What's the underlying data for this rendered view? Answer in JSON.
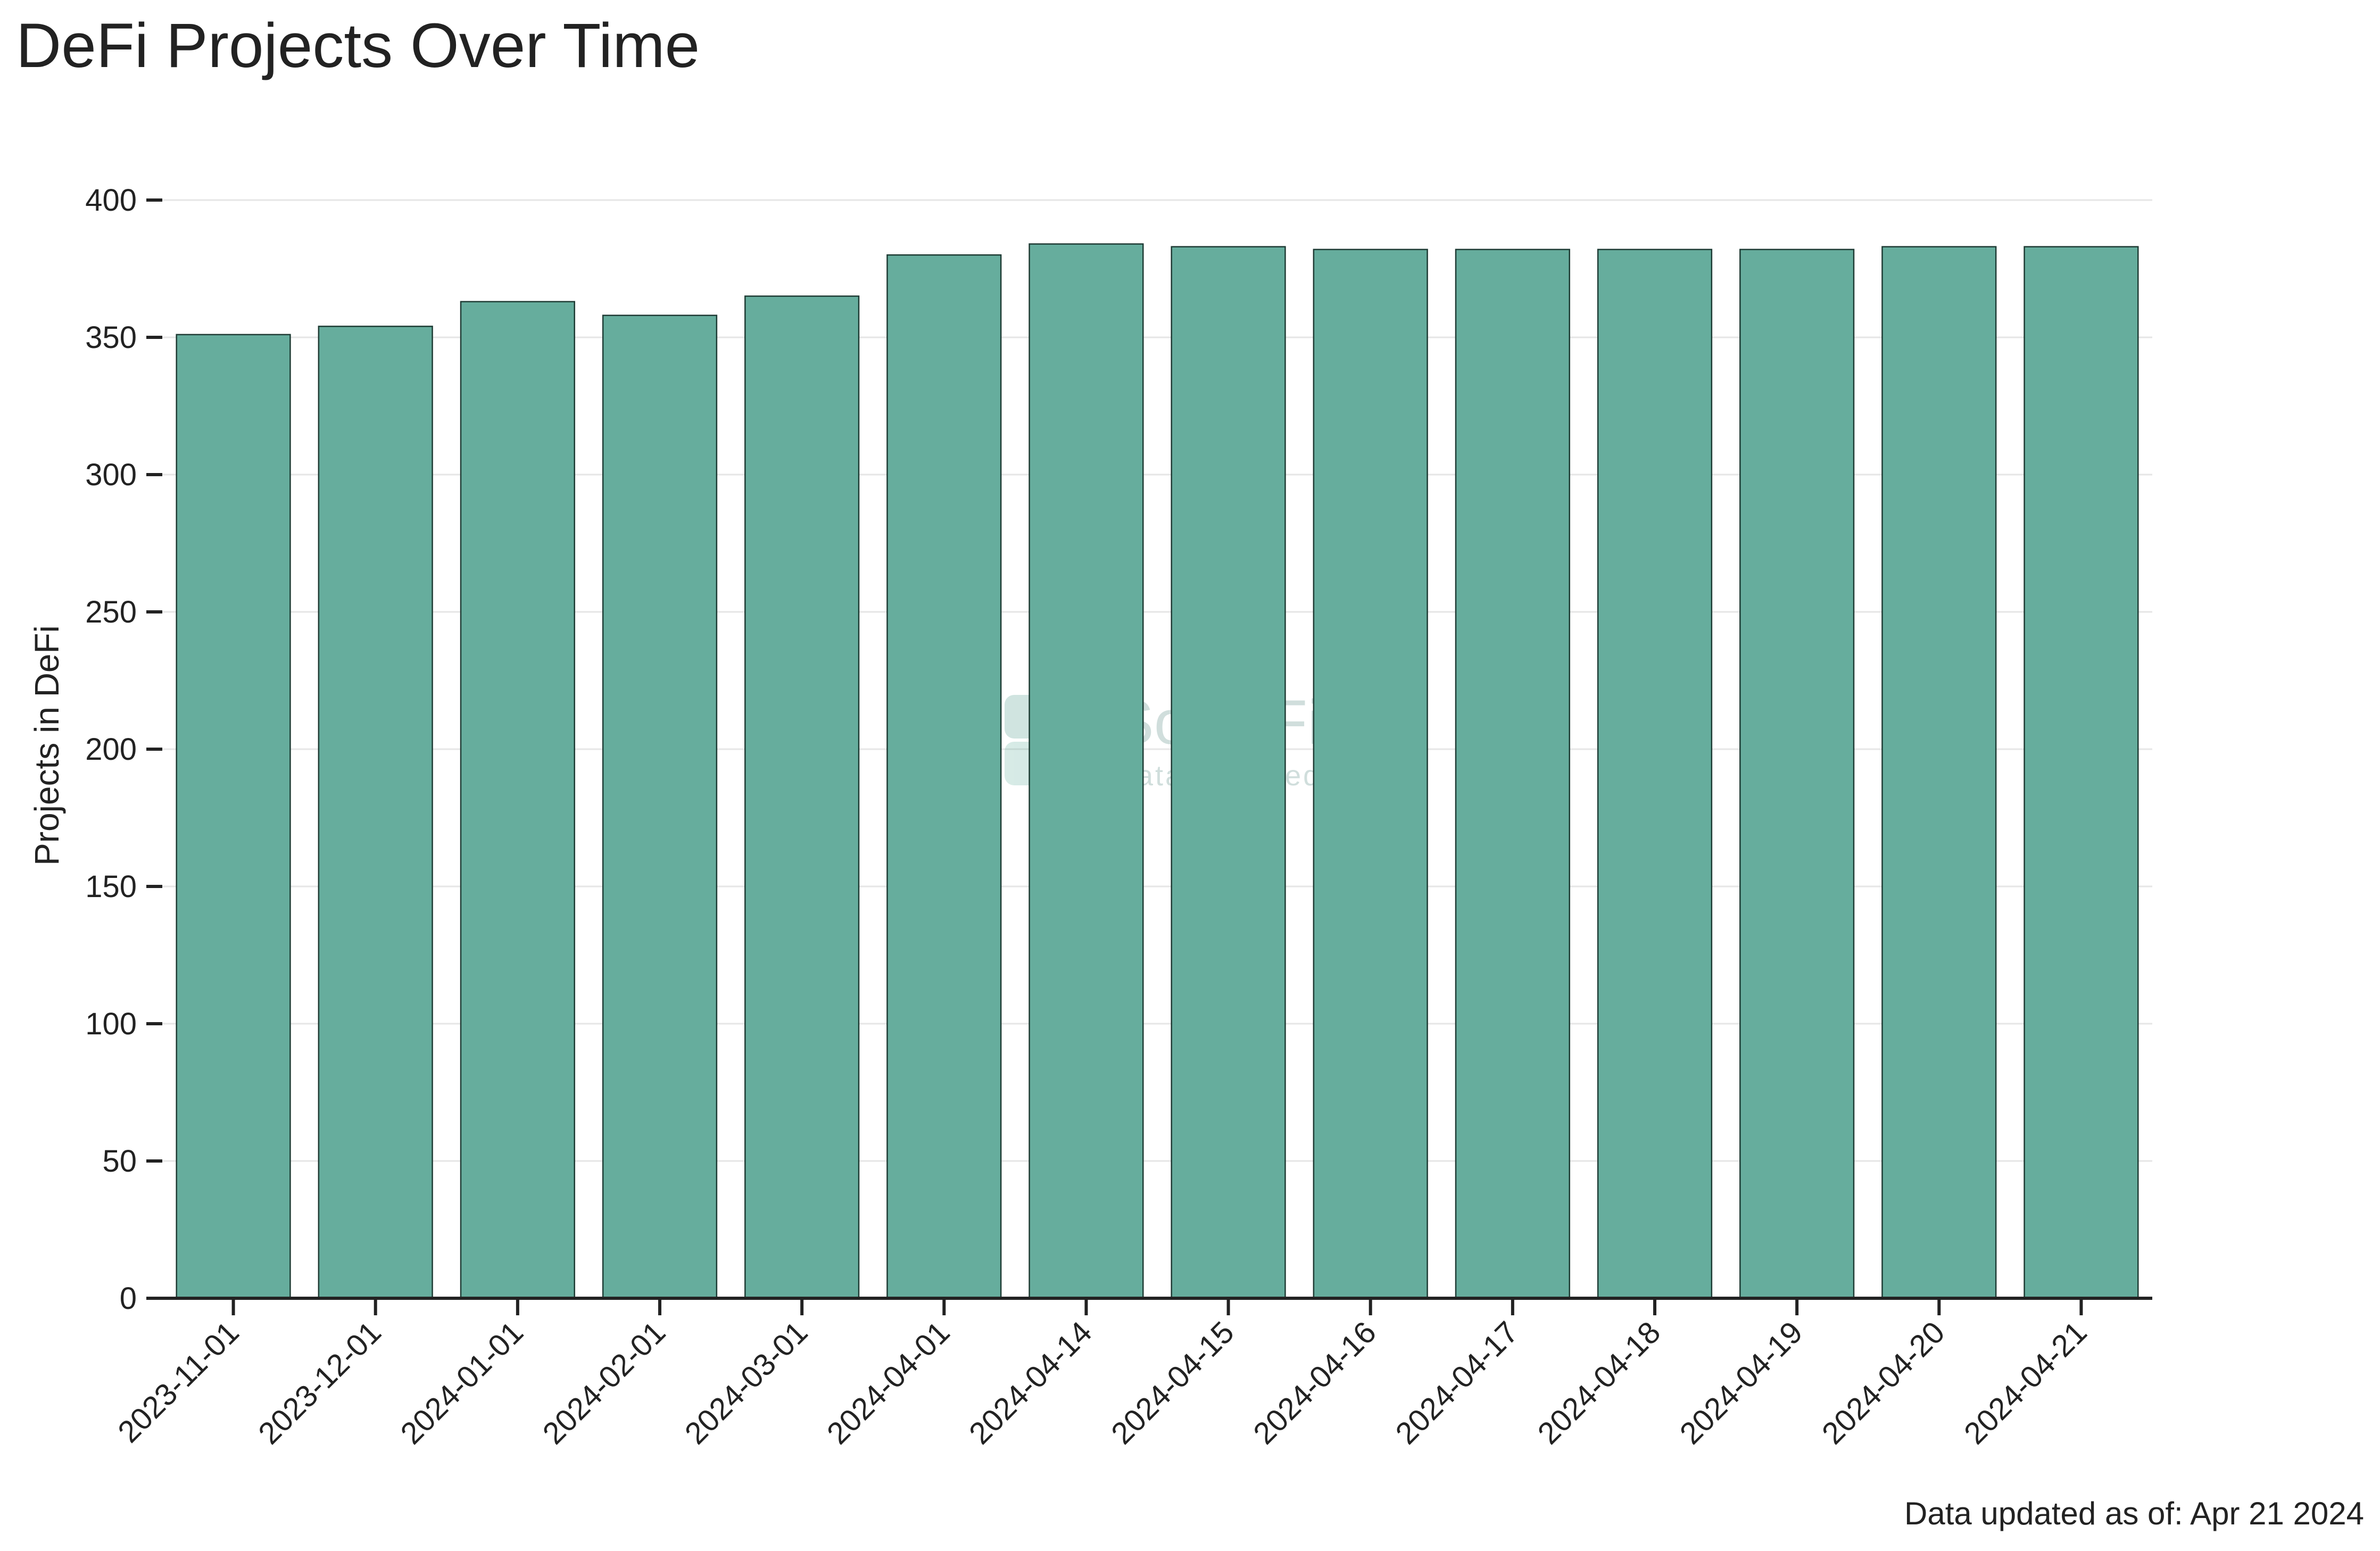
{
  "chart_data": {
    "type": "bar",
    "title": "DeFi Projects Over Time",
    "xlabel": "",
    "ylabel": "Projects in DeFi",
    "categories": [
      "2023-11-01",
      "2023-12-01",
      "2024-01-01",
      "2024-02-01",
      "2024-03-01",
      "2024-04-01",
      "2024-04-14",
      "2024-04-15",
      "2024-04-16",
      "2024-04-17",
      "2024-04-18",
      "2024-04-19",
      "2024-04-20",
      "2024-04-21"
    ],
    "values": [
      351,
      354,
      363,
      358,
      365,
      380,
      384,
      383,
      382,
      382,
      382,
      382,
      383,
      383
    ],
    "ylim": [
      0,
      400
    ],
    "yticks": [
      0,
      50,
      100,
      150,
      200,
      250,
      300,
      350,
      400
    ],
    "grid": "horizontal",
    "bar_color": "#66AD9D",
    "footnote": "Data updated as of: Apr 21 2024",
    "watermark": {
      "name": "SoDeFi",
      "tagline": "Data, inspired."
    }
  }
}
